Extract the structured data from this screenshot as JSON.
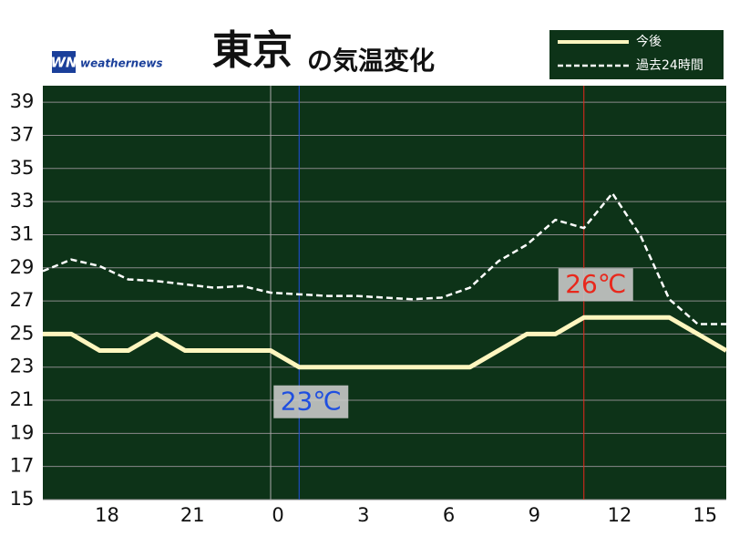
{
  "chart_data": {
    "type": "line",
    "title": "東京",
    "subtitle": "の気温変化",
    "logo": "WN",
    "brand": "weathernews",
    "x": [
      -8,
      -7,
      -6,
      -5,
      -4,
      -3,
      -2,
      -1,
      0,
      1,
      2,
      3,
      4,
      5,
      6,
      7,
      8,
      9,
      10,
      11,
      12,
      13,
      14,
      15,
      16
    ],
    "series": [
      {
        "name": "今後",
        "color": "#fff6bf",
        "dashed": false,
        "values": [
          25,
          25,
          24,
          24,
          25,
          24,
          24,
          24,
          24,
          23,
          23,
          23,
          23,
          23,
          23,
          23,
          24,
          25,
          25,
          26,
          26,
          26,
          26,
          25,
          24
        ]
      },
      {
        "name": "過去24時間",
        "color": "#ffffff",
        "dashed": true,
        "values": [
          28.8,
          29.5,
          29.1,
          28.3,
          28.2,
          28.0,
          27.8,
          27.9,
          27.5,
          27.4,
          27.3,
          27.3,
          27.2,
          27.1,
          27.2,
          27.8,
          29.4,
          30.4,
          31.9,
          31.4,
          33.5,
          30.9,
          27.1,
          25.6,
          25.6
        ]
      }
    ],
    "xlim": [
      -8,
      16
    ],
    "xticks": [
      {
        "value": -6,
        "label": "18"
      },
      {
        "value": -3,
        "label": "21"
      },
      0,
      3,
      6,
      9,
      12,
      15
    ],
    "ylim": [
      15,
      40
    ],
    "yticks": [
      15,
      17,
      19,
      21,
      23,
      25,
      27,
      29,
      31,
      33,
      35,
      37,
      39
    ],
    "grid": true,
    "day_line": 0,
    "annotations": [
      {
        "x": 1,
        "value": 23,
        "label": "23℃",
        "color": "#1f4fe0",
        "position": "below"
      },
      {
        "x": 11,
        "value": 26,
        "label": "26℃",
        "color": "#e8281c",
        "position": "above"
      }
    ]
  }
}
